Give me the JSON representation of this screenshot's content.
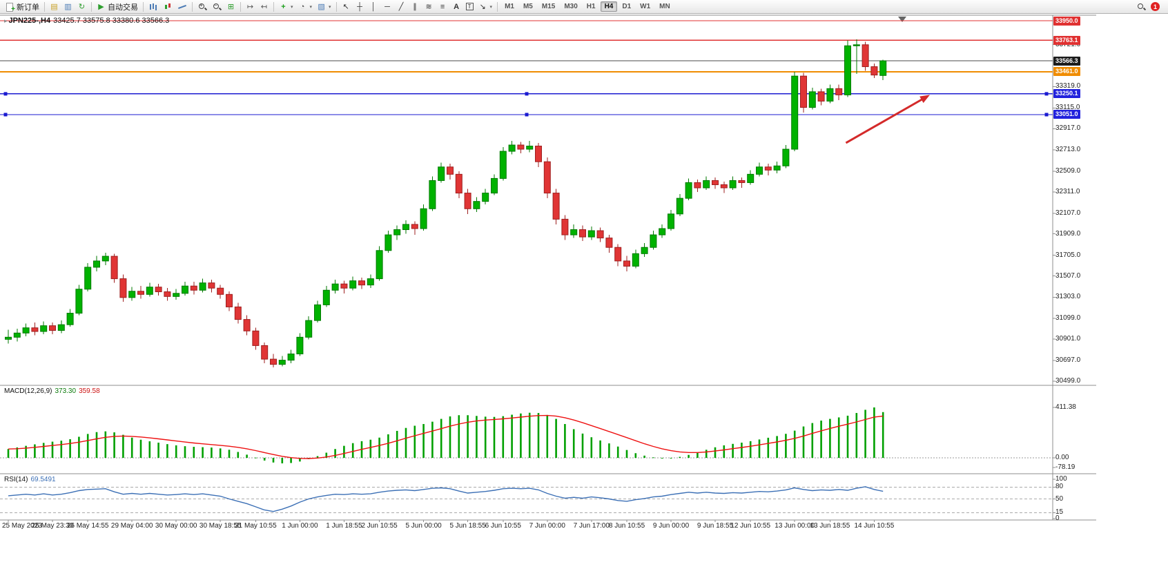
{
  "toolbar": {
    "groups": [
      [
        {
          "name": "new-order",
          "shape": "doc",
          "label": "新订单"
        }
      ],
      [
        {
          "name": "chart-profile",
          "glyph": "▤",
          "color": "#c9a227"
        },
        {
          "name": "market-watch",
          "glyph": "▥",
          "color": "#4a7ab5"
        },
        {
          "name": "refresh",
          "glyph": "↻",
          "color": "#2e9e2e"
        }
      ],
      [
        {
          "name": "auto-trading",
          "glyph": "▶",
          "color": "#2e9e2e",
          "label": "自动交易"
        }
      ],
      [
        {
          "name": "bar-chart-type",
          "shape": "bars"
        },
        {
          "name": "candle-chart-type",
          "shape": "candles"
        },
        {
          "name": "line-chart-type",
          "shape": "line"
        }
      ],
      [
        {
          "name": "zoom-in",
          "shape": "zoom",
          "sign": "+"
        },
        {
          "name": "zoom-out",
          "shape": "zoom",
          "sign": "−"
        },
        {
          "name": "tile-windows",
          "glyph": "⊞",
          "color": "#2e9e2e"
        }
      ],
      [
        {
          "name": "auto-scroll",
          "glyph": "↦",
          "color": "#555555"
        },
        {
          "name": "chart-shift",
          "glyph": "↤",
          "color": "#555555"
        }
      ],
      [
        {
          "name": "indicators-list",
          "glyph": "+",
          "color": "#1a9e1a",
          "dropdown": true
        },
        {
          "name": "periods",
          "glyph": "◔",
          "color": "#555555",
          "dropdown": true
        },
        {
          "name": "templates",
          "glyph": "▧",
          "color": "#4a7ab5",
          "dropdown": true
        }
      ],
      [
        {
          "name": "cursor",
          "glyph": "↖",
          "color": "#333333"
        },
        {
          "name": "crosshair",
          "glyph": "┼",
          "color": "#333333"
        },
        {
          "name": "vertical-line",
          "glyph": "│",
          "color": "#333333"
        },
        {
          "name": "horizontal-line",
          "glyph": "─",
          "color": "#333333"
        },
        {
          "name": "trendline",
          "glyph": "╱",
          "color": "#333333"
        },
        {
          "name": "channel",
          "glyph": "∥",
          "color": "#333333"
        },
        {
          "name": "fibonacci",
          "glyph": "≋",
          "color": "#333333"
        },
        {
          "name": "objects",
          "glyph": "≡",
          "color": "#333333"
        },
        {
          "name": "text",
          "glyph": "A",
          "color": "#333333"
        },
        {
          "name": "text-label",
          "glyph": "T",
          "color": "#333333",
          "boxed": true
        },
        {
          "name": "arrow-tools",
          "glyph": "↘",
          "color": "#333333",
          "dropdown": true
        }
      ]
    ],
    "timeframes": {
      "items": [
        "M1",
        "M5",
        "M15",
        "M30",
        "H1",
        "H4",
        "D1",
        "W1",
        "MN"
      ],
      "active": "H4"
    },
    "right": {
      "badge": "1"
    }
  },
  "chart": {
    "title": {
      "symbol": "JPN225-,H4",
      "ohlc": "33425.7 33575.8 33380.6 33566.3",
      "oneclick_icon": "▸"
    },
    "price_axis": {
      "ticks": [
        "33721.0",
        "33319.0",
        "33115.0",
        "32917.0",
        "32713.0",
        "32509.0",
        "32311.0",
        "32107.0",
        "31909.0",
        "31705.0",
        "31507.0",
        "31303.0",
        "31099.0",
        "30901.0",
        "30697.0",
        "30499.0"
      ],
      "levels": [
        {
          "text": "33950.0",
          "price": 33950.0,
          "bg": "#e03131"
        },
        {
          "text": "33763.1",
          "price": 33763.1,
          "bg": "#e03131"
        },
        {
          "text": "33566.3",
          "price": 33566.3,
          "bg": "#1c1c1c"
        },
        {
          "text": "33461.0",
          "price": 33461.0,
          "bg": "#f08c00"
        },
        {
          "text": "33250.1",
          "price": 33250.1,
          "bg": "#2222dd"
        },
        {
          "text": "33051.0",
          "price": 33051.0,
          "bg": "#2222dd"
        }
      ]
    },
    "hlines": [
      {
        "price": 33950.0,
        "color": "#e03131",
        "width": 1.4,
        "handles": false
      },
      {
        "price": 33763.1,
        "color": "#e03131",
        "width": 1.4,
        "handles": false
      },
      {
        "price": 33566.3,
        "color": "#4a4a4a",
        "width": 1,
        "handles": false
      },
      {
        "price": 33461.0,
        "color": "#f08c00",
        "width": 1.6,
        "handles": false
      },
      {
        "price": 33250.1,
        "color": "#1a1ad0",
        "width": 1.4,
        "handles": true
      },
      {
        "price": 33051.0,
        "color": "#1a1ad0",
        "width": 1.4,
        "handles": true
      }
    ],
    "arrow": {
      "from": {
        "i": 94.8,
        "price": 32780
      },
      "to": {
        "i": 104.3,
        "price": 33240
      },
      "color": "#d42a2a"
    },
    "time_axis": [
      {
        "label": "25 May 2023",
        "i": 0
      },
      {
        "label": "25 May 23:30",
        "i": 5
      },
      {
        "label": "26 May 14:55",
        "i": 9
      },
      {
        "label": "29 May 04:00",
        "i": 14
      },
      {
        "label": "30 May 00:00",
        "i": 19
      },
      {
        "label": "30 May 18:55",
        "i": 24
      },
      {
        "label": "31 May 10:55",
        "i": 28
      },
      {
        "label": "1 Jun 00:00",
        "i": 33
      },
      {
        "label": "1 Jun 18:55",
        "i": 38
      },
      {
        "label": "2 Jun 10:55",
        "i": 42
      },
      {
        "label": "5 Jun 00:00",
        "i": 47
      },
      {
        "label": "5 Jun 18:55",
        "i": 52
      },
      {
        "label": "6 Jun 10:55",
        "i": 56
      },
      {
        "label": "7 Jun 00:00",
        "i": 61
      },
      {
        "label": "7 Jun 17:00",
        "i": 66
      },
      {
        "label": "8 Jun 10:55",
        "i": 70
      },
      {
        "label": "9 Jun 00:00",
        "i": 75
      },
      {
        "label": "9 Jun 18:55",
        "i": 80
      },
      {
        "label": "12 Jun 10:55",
        "i": 84
      },
      {
        "label": "13 Jun 00:00",
        "i": 89
      },
      {
        "label": "13 Jun 18:55",
        "i": 93
      },
      {
        "label": "14 Jun 10:55",
        "i": 98
      }
    ],
    "candles": [
      [
        30900,
        30990,
        30860,
        30920
      ],
      [
        30920,
        31000,
        30880,
        30960
      ],
      [
        30960,
        31050,
        30930,
        31010
      ],
      [
        31010,
        31060,
        30940,
        30975
      ],
      [
        30975,
        31070,
        30950,
        31030
      ],
      [
        31030,
        31060,
        30950,
        30985
      ],
      [
        30985,
        31080,
        30960,
        31040
      ],
      [
        31040,
        31190,
        31020,
        31150
      ],
      [
        31150,
        31420,
        31130,
        31380
      ],
      [
        31380,
        31630,
        31360,
        31590
      ],
      [
        31590,
        31700,
        31550,
        31650
      ],
      [
        31650,
        31730,
        31610,
        31695
      ],
      [
        31695,
        31720,
        31440,
        31480
      ],
      [
        31480,
        31520,
        31260,
        31300
      ],
      [
        31300,
        31400,
        31270,
        31360
      ],
      [
        31360,
        31410,
        31290,
        31330
      ],
      [
        31330,
        31440,
        31310,
        31400
      ],
      [
        31400,
        31430,
        31320,
        31355
      ],
      [
        31355,
        31390,
        31270,
        31310
      ],
      [
        31310,
        31380,
        31280,
        31340
      ],
      [
        31340,
        31450,
        31320,
        31410
      ],
      [
        31410,
        31450,
        31330,
        31370
      ],
      [
        31370,
        31480,
        31350,
        31440
      ],
      [
        31440,
        31470,
        31350,
        31390
      ],
      [
        31390,
        31420,
        31290,
        31330
      ],
      [
        31330,
        31360,
        31170,
        31210
      ],
      [
        31210,
        31250,
        31050,
        31090
      ],
      [
        31090,
        31130,
        30940,
        30980
      ],
      [
        30980,
        31010,
        30800,
        30840
      ],
      [
        30840,
        30870,
        30670,
        30710
      ],
      [
        30710,
        30760,
        30630,
        30660
      ],
      [
        30660,
        30740,
        30640,
        30700
      ],
      [
        30700,
        30800,
        30670,
        30760
      ],
      [
        30760,
        30960,
        30740,
        30920
      ],
      [
        30920,
        31120,
        30900,
        31080
      ],
      [
        31080,
        31270,
        31060,
        31230
      ],
      [
        31230,
        31410,
        31210,
        31370
      ],
      [
        31370,
        31470,
        31340,
        31430
      ],
      [
        31430,
        31460,
        31340,
        31390
      ],
      [
        31390,
        31500,
        31370,
        31460
      ],
      [
        31460,
        31490,
        31380,
        31420
      ],
      [
        31420,
        31520,
        31390,
        31480
      ],
      [
        31480,
        31790,
        31460,
        31750
      ],
      [
        31750,
        31940,
        31730,
        31900
      ],
      [
        31900,
        31990,
        31850,
        31950
      ],
      [
        31950,
        32040,
        31910,
        32000
      ],
      [
        32000,
        32030,
        31900,
        31960
      ],
      [
        31960,
        32190,
        31940,
        32150
      ],
      [
        32150,
        32460,
        32130,
        32420
      ],
      [
        32420,
        32590,
        32400,
        32550
      ],
      [
        32550,
        32580,
        32430,
        32480
      ],
      [
        32480,
        32510,
        32250,
        32300
      ],
      [
        32300,
        32340,
        32100,
        32150
      ],
      [
        32150,
        32260,
        32120,
        32220
      ],
      [
        32220,
        32340,
        32190,
        32300
      ],
      [
        32300,
        32480,
        32280,
        32440
      ],
      [
        32440,
        32740,
        32420,
        32700
      ],
      [
        32700,
        32800,
        32670,
        32760
      ],
      [
        32760,
        32790,
        32680,
        32720
      ],
      [
        32720,
        32800,
        32690,
        32750
      ],
      [
        32750,
        32780,
        32550,
        32600
      ],
      [
        32600,
        32640,
        32250,
        32300
      ],
      [
        32300,
        32340,
        32000,
        32050
      ],
      [
        32050,
        32090,
        31850,
        31900
      ],
      [
        31900,
        32000,
        31870,
        31950
      ],
      [
        31950,
        31990,
        31840,
        31880
      ],
      [
        31880,
        31980,
        31850,
        31940
      ],
      [
        31940,
        31970,
        31830,
        31870
      ],
      [
        31870,
        31900,
        31730,
        31780
      ],
      [
        31780,
        31810,
        31600,
        31650
      ],
      [
        31650,
        31700,
        31550,
        31600
      ],
      [
        31600,
        31760,
        31580,
        31720
      ],
      [
        31720,
        31820,
        31690,
        31780
      ],
      [
        31780,
        31940,
        31760,
        31900
      ],
      [
        31900,
        32000,
        31870,
        31960
      ],
      [
        31960,
        32140,
        31940,
        32100
      ],
      [
        32100,
        32290,
        32080,
        32250
      ],
      [
        32250,
        32440,
        32230,
        32400
      ],
      [
        32400,
        32430,
        32310,
        32350
      ],
      [
        32350,
        32460,
        32330,
        32420
      ],
      [
        32420,
        32450,
        32340,
        32380
      ],
      [
        32380,
        32410,
        32300,
        32350
      ],
      [
        32350,
        32460,
        32330,
        32420
      ],
      [
        32420,
        32450,
        32350,
        32400
      ],
      [
        32400,
        32520,
        32380,
        32480
      ],
      [
        32480,
        32590,
        32460,
        32550
      ],
      [
        32550,
        32580,
        32470,
        32520
      ],
      [
        32520,
        32600,
        32490,
        32560
      ],
      [
        32560,
        32760,
        32540,
        32720
      ],
      [
        32720,
        33460,
        32700,
        33420
      ],
      [
        33420,
        33450,
        33070,
        33120
      ],
      [
        33120,
        33310,
        33100,
        33270
      ],
      [
        33270,
        33300,
        33140,
        33180
      ],
      [
        33180,
        33340,
        33160,
        33300
      ],
      [
        33300,
        33340,
        33190,
        33240
      ],
      [
        33240,
        33760,
        33220,
        33710
      ],
      [
        33710,
        33770,
        33440,
        33720
      ],
      [
        33720,
        33750,
        33470,
        33510
      ],
      [
        33510,
        33540,
        33400,
        33430
      ],
      [
        33425.7,
        33575.8,
        33380.6,
        33566.3
      ]
    ]
  },
  "macd": {
    "label": "MACD(12,26,9)",
    "value_main": "373.30",
    "value_signal": "359.58",
    "scale": [
      {
        "text": "411.38",
        "v": 411.38
      },
      {
        "text": "0.00",
        "v": 0
      },
      {
        "text": "-78.19",
        "v": -78.19
      }
    ],
    "values": [
      72,
      85,
      98,
      110,
      122,
      132,
      140,
      152,
      172,
      195,
      210,
      216,
      208,
      188,
      165,
      148,
      135,
      124,
      112,
      102,
      95,
      90,
      87,
      84,
      77,
      66,
      48,
      26,
      2,
      -22,
      -38,
      -45,
      -42,
      -30,
      -10,
      14,
      42,
      72,
      98,
      120,
      136,
      148,
      165,
      192,
      220,
      244,
      262,
      276,
      295,
      318,
      338,
      348,
      348,
      342,
      336,
      334,
      340,
      352,
      362,
      368,
      366,
      350,
      318,
      276,
      234,
      198,
      168,
      142,
      118,
      92,
      64,
      38,
      18,
      4,
      -4,
      -2,
      8,
      24,
      44,
      66,
      86,
      102,
      114,
      124,
      136,
      150,
      164,
      178,
      196,
      222,
      256,
      284,
      304,
      318,
      330,
      344,
      366,
      392,
      411.38,
      373.3
    ]
  },
  "rsi": {
    "label": "RSI(14)",
    "value": "69.5491",
    "scale": [
      {
        "text": "100",
        "v": 100
      },
      {
        "text": "80",
        "v": 80
      },
      {
        "text": "50",
        "v": 50
      },
      {
        "text": "15",
        "v": 15
      },
      {
        "text": "0",
        "v": 0
      }
    ],
    "levels": [
      80,
      50,
      15
    ],
    "values": [
      58,
      60,
      62,
      60,
      63,
      60,
      62,
      66,
      71,
      74,
      75,
      76,
      68,
      62,
      64,
      62,
      64,
      62,
      60,
      61,
      63,
      61,
      63,
      60,
      57,
      50,
      44,
      38,
      30,
      22,
      18,
      24,
      32,
      42,
      50,
      55,
      59,
      62,
      61,
      63,
      62,
      63,
      67,
      70,
      72,
      73,
      71,
      74,
      77,
      78,
      76,
      70,
      65,
      67,
      69,
      72,
      76,
      77,
      76,
      77,
      73,
      64,
      57,
      52,
      54,
      52,
      55,
      53,
      50,
      46,
      44,
      48,
      51,
      55,
      57,
      61,
      64,
      67,
      65,
      67,
      65,
      64,
      66,
      65,
      67,
      69,
      68,
      70,
      73,
      78,
      74,
      71,
      73,
      72,
      74,
      72,
      77,
      81,
      74,
      69.55
    ]
  },
  "colors": {
    "up": "#00b200",
    "up_border": "#007a00",
    "down": "#e03535",
    "down_border": "#9e1f1f",
    "macd_hist": "#00a000",
    "macd_signal": "#ee1111",
    "rsi_line": "#3b6fb5",
    "axis": "#8c8c8c"
  }
}
